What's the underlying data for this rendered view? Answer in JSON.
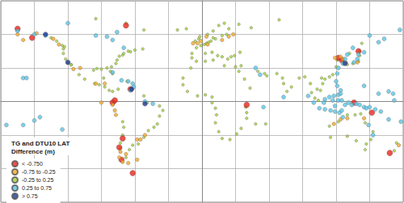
{
  "chart_data": {
    "type": "scatter",
    "title": "TG and DTU10 LAT",
    "subtitle": "Difference (m)",
    "xlim": [
      -180,
      180
    ],
    "xticks": [
      -180,
      -150,
      -120,
      -90,
      -60,
      -30,
      0,
      30,
      60,
      90,
      120,
      150,
      180
    ],
    "ylim": [
      -90,
      90
    ],
    "yticks": [
      -90,
      -60,
      -30,
      0,
      30,
      60,
      90
    ],
    "grid": true,
    "tick_labels": false,
    "legend": "lower left",
    "marker": "circle",
    "series": [
      {
        "name": "< -0.750",
        "color": "#e8251b",
        "values": [
          [
            -152,
            57
          ],
          [
            -165,
            65
          ],
          [
            -80,
            -1
          ],
          [
            -78,
            1
          ],
          [
            -71,
            -33
          ],
          [
            -74,
            -41
          ],
          [
            -72,
            -52
          ],
          [
            -62,
            -64
          ],
          [
            -64,
            11
          ],
          [
            125,
            37
          ],
          [
            122,
            39
          ],
          [
            140,
            45
          ],
          [
            136,
            -1
          ],
          [
            152,
            -10
          ],
          [
            168,
            -46
          ],
          [
            -68,
            68
          ],
          [
            40,
            -3
          ]
        ]
      },
      {
        "name": "-0.75 to -0.25",
        "color": "#f2a72a",
        "values": [
          [
            -160,
            55
          ],
          [
            -165,
            60
          ],
          [
            -148,
            61
          ],
          [
            -133,
            56
          ],
          [
            -128,
            51
          ],
          [
            -73,
            -45
          ],
          [
            -74,
            -50
          ],
          [
            -71,
            -54
          ],
          [
            -66,
            -55
          ],
          [
            -58,
            -52
          ],
          [
            -68,
            -47
          ],
          [
            -90,
            -1
          ],
          [
            -78,
            -8
          ],
          [
            -80,
            -3
          ],
          [
            -77,
            -12
          ],
          [
            -58,
            -34
          ],
          [
            -1,
            54
          ],
          [
            4,
            58
          ],
          [
            18,
            55
          ],
          [
            24,
            58
          ],
          [
            28,
            60
          ],
          [
            -8,
            52
          ],
          [
            -4,
            52
          ],
          [
            126,
            38
          ],
          [
            124,
            40
          ],
          [
            119,
            39
          ],
          [
            139,
            35
          ],
          [
            130,
            -15
          ],
          [
            124,
            -16
          ],
          [
            118,
            -20
          ],
          [
            145,
            -15
          ],
          [
            176,
            -39
          ],
          [
            -95,
            16
          ],
          [
            -115,
            29
          ],
          [
            -109,
            30
          ],
          [
            -87,
            16
          ],
          [
            -51,
            -30
          ],
          [
            -55,
            -34
          ],
          [
            5,
            51
          ]
        ]
      },
      {
        "name": "-0.25 to 0.25",
        "color": "#a4cf3c",
        "values": [
          [
            -124,
            47
          ],
          [
            -124,
            43
          ],
          [
            -122,
            38
          ],
          [
            -120,
            34.5
          ],
          [
            -117,
            33
          ],
          [
            -117,
            32.7
          ],
          [
            -123,
            49
          ],
          [
            -125,
            50
          ],
          [
            -130,
            54
          ],
          [
            -135,
            57
          ],
          [
            -110,
            24
          ],
          [
            -105,
            20
          ],
          [
            -96,
            16
          ],
          [
            -92,
            15
          ],
          [
            -87,
            13
          ],
          [
            -97,
            28
          ],
          [
            -94,
            29.5
          ],
          [
            -90,
            29
          ],
          [
            -85,
            30
          ],
          [
            -82,
            27
          ],
          [
            -80,
            25
          ],
          [
            -81,
            31
          ],
          [
            -77,
            34
          ],
          [
            -76,
            37
          ],
          [
            -74,
            40.5
          ],
          [
            -71,
            41.5
          ],
          [
            -70,
            43
          ],
          [
            -66,
            45
          ],
          [
            -64,
            44.5
          ],
          [
            -60,
            46
          ],
          [
            -53,
            47
          ],
          [
            -88,
            21
          ],
          [
            -83,
            10
          ],
          [
            -80,
            9
          ],
          [
            -75,
            11
          ],
          [
            -67,
            18
          ],
          [
            -52,
            5
          ],
          [
            -49,
            -1
          ],
          [
            -38,
            -4
          ],
          [
            -35,
            -8
          ],
          [
            -38,
            -13
          ],
          [
            -40,
            -20
          ],
          [
            -43,
            -23
          ],
          [
            -48,
            -26
          ],
          [
            -52,
            -32
          ],
          [
            -57,
            -38
          ],
          [
            -62,
            -39
          ],
          [
            -65,
            -43
          ],
          [
            -68,
            -50
          ],
          [
            -71,
            -18
          ],
          [
            -70,
            -23
          ],
          [
            -71,
            -30
          ],
          [
            -73,
            -37
          ],
          [
            -73,
            -42
          ],
          [
            -52,
            64
          ],
          [
            -22,
            64
          ],
          [
            -14,
            65
          ],
          [
            -9,
            39
          ],
          [
            -9,
            43
          ],
          [
            -5,
            48
          ],
          [
            -1,
            50
          ],
          [
            2,
            51
          ],
          [
            4,
            52
          ],
          [
            6,
            53
          ],
          [
            8,
            54
          ],
          [
            10,
            57
          ],
          [
            5,
            60
          ],
          [
            10,
            63
          ],
          [
            15,
            68
          ],
          [
            20,
            70
          ],
          [
            -6,
            54
          ],
          [
            -3,
            56
          ],
          [
            -2,
            58
          ],
          [
            12,
            56
          ],
          [
            18,
            59
          ],
          [
            22,
            60
          ],
          [
            24,
            65
          ],
          [
            3,
            43
          ],
          [
            9,
            44
          ],
          [
            14,
            41
          ],
          [
            18,
            40
          ],
          [
            23,
            38
          ],
          [
            26,
            40
          ],
          [
            29,
            41
          ],
          [
            34,
            44
          ],
          [
            35,
            32
          ],
          [
            30,
            31
          ],
          [
            20,
            32
          ],
          [
            10,
            37
          ],
          [
            3,
            36
          ],
          [
            -5,
            36
          ],
          [
            -10,
            30
          ],
          [
            -17,
            15
          ],
          [
            -17,
            21
          ],
          [
            -13,
            9
          ],
          [
            -4,
            5
          ],
          [
            3,
            6
          ],
          [
            9,
            4
          ],
          [
            9,
            -1
          ],
          [
            12,
            -6
          ],
          [
            13,
            -12
          ],
          [
            12,
            -19
          ],
          [
            15,
            -27
          ],
          [
            18,
            -33
          ],
          [
            25,
            -34
          ],
          [
            31,
            -29
          ],
          [
            35,
            -24
          ],
          [
            40,
            -15
          ],
          [
            40,
            -10
          ],
          [
            39,
            -5
          ],
          [
            43,
            12
          ],
          [
            38,
            20
          ],
          [
            33,
            27
          ],
          [
            48,
            -20
          ],
          [
            57,
            -20
          ],
          [
            50,
            27
          ],
          [
            56,
            25
          ],
          [
            58,
            23
          ],
          [
            67,
            25
          ],
          [
            72,
            21
          ],
          [
            73,
            16
          ],
          [
            76,
            9
          ],
          [
            80,
            13
          ],
          [
            87,
            21
          ],
          [
            92,
            22
          ],
          [
            97,
            16
          ],
          [
            98,
            8
          ],
          [
            101,
            3
          ],
          [
            104,
            1
          ],
          [
            103,
            11
          ],
          [
            106,
            10
          ],
          [
            108,
            16
          ],
          [
            107,
            21
          ],
          [
            110,
            20
          ],
          [
            114,
            22
          ],
          [
            117,
            24
          ],
          [
            120,
            31
          ],
          [
            121,
            37
          ],
          [
            126,
            37
          ],
          [
            129,
            35
          ],
          [
            130,
            33
          ],
          [
            135,
            34
          ],
          [
            140,
            36
          ],
          [
            141,
            41
          ],
          [
            141,
            45
          ],
          [
            132,
            43
          ],
          [
            143,
            52
          ],
          [
            115,
            -32
          ],
          [
            114,
            -22
          ],
          [
            122,
            -18
          ],
          [
            130,
            -12
          ],
          [
            137,
            -12
          ],
          [
            142,
            -11
          ],
          [
            146,
            -19
          ],
          [
            153,
            -27
          ],
          [
            151,
            -34
          ],
          [
            147,
            -38
          ],
          [
            138,
            -35
          ],
          [
            130,
            -31
          ],
          [
            146,
            -43
          ],
          [
            174,
            -37
          ],
          [
            172,
            -44
          ],
          [
            33,
            69
          ],
          [
            44,
            66
          ],
          [
            69,
            73
          ],
          [
            -95,
            74
          ],
          [
            -68,
            70
          ]
        ]
      },
      {
        "name": "0.25 to 0.75",
        "color": "#5cc6e6",
        "values": [
          [
            -80,
            26
          ],
          [
            -72,
            19
          ],
          [
            -66,
            18
          ],
          [
            -62,
            16
          ],
          [
            -61,
            13
          ],
          [
            -64,
            10
          ],
          [
            -51,
            0
          ],
          [
            -44,
            -2
          ],
          [
            95,
            5
          ],
          [
            100,
            -1
          ],
          [
            105,
            -6
          ],
          [
            110,
            -7
          ],
          [
            115,
            -8
          ],
          [
            119,
            -9
          ],
          [
            123,
            -10
          ],
          [
            125,
            -8
          ],
          [
            128,
            -3
          ],
          [
            131,
            -1
          ],
          [
            134,
            -3
          ],
          [
            138,
            -2
          ],
          [
            141,
            -3
          ],
          [
            145,
            -5
          ],
          [
            147,
            -6
          ],
          [
            150,
            -5
          ],
          [
            155,
            -7
          ],
          [
            160,
            -9
          ],
          [
            167,
            -16
          ],
          [
            178,
            -18
          ],
          [
            -175,
            -21
          ],
          [
            -150,
            -17
          ],
          [
            -160,
            -21
          ],
          [
            118,
            5
          ],
          [
            117,
            1
          ],
          [
            119,
            -4
          ],
          [
            122,
            1
          ],
          [
            125,
            1
          ],
          [
            122,
            6
          ],
          [
            124,
            10
          ],
          [
            121,
            14
          ],
          [
            120,
            18
          ],
          [
            124,
            7
          ],
          [
            114,
            4
          ],
          [
            110,
            2
          ],
          [
            109,
            -1
          ],
          [
            145,
            14
          ],
          [
            158,
            7
          ],
          [
            167,
            9
          ],
          [
            171,
            7
          ],
          [
            172,
            1
          ],
          [
            122,
            30
          ],
          [
            121,
            25
          ],
          [
            126,
            34
          ],
          [
            128,
            38
          ],
          [
            136,
            35
          ],
          [
            139,
            38
          ],
          [
            140,
            42
          ],
          [
            130,
            42
          ],
          [
            145,
            44
          ],
          [
            135,
            48
          ],
          [
            150,
            59
          ],
          [
            158,
            53
          ],
          [
            163,
            56
          ],
          [
            177,
            64
          ],
          [
            -70,
            48
          ],
          [
            -80,
            55
          ],
          [
            -85,
            58
          ],
          [
            -95,
            59
          ],
          [
            -76,
            62
          ],
          [
            -120,
            70
          ],
          [
            -165,
            63
          ],
          [
            -150,
            60
          ],
          [
            -140,
            59
          ],
          [
            55,
            -5
          ],
          [
            73,
            4
          ],
          [
            -145,
            -14
          ],
          [
            -125,
            -25
          ],
          [
            48,
            30
          ],
          [
            52,
            24
          ],
          [
            -160,
            21
          ],
          [
            -157,
            21
          ],
          [
            149,
            -21
          ],
          [
            153,
            -30
          ],
          [
            126,
            -14
          ]
        ]
      },
      {
        "name": "> 0.75",
        "color": "#1f3b8f",
        "values": [
          [
            -140,
            60
          ],
          [
            -63,
            11
          ],
          [
            -51,
            -2
          ],
          [
            -120,
            35
          ],
          [
            128,
            34
          ]
        ]
      }
    ]
  }
}
